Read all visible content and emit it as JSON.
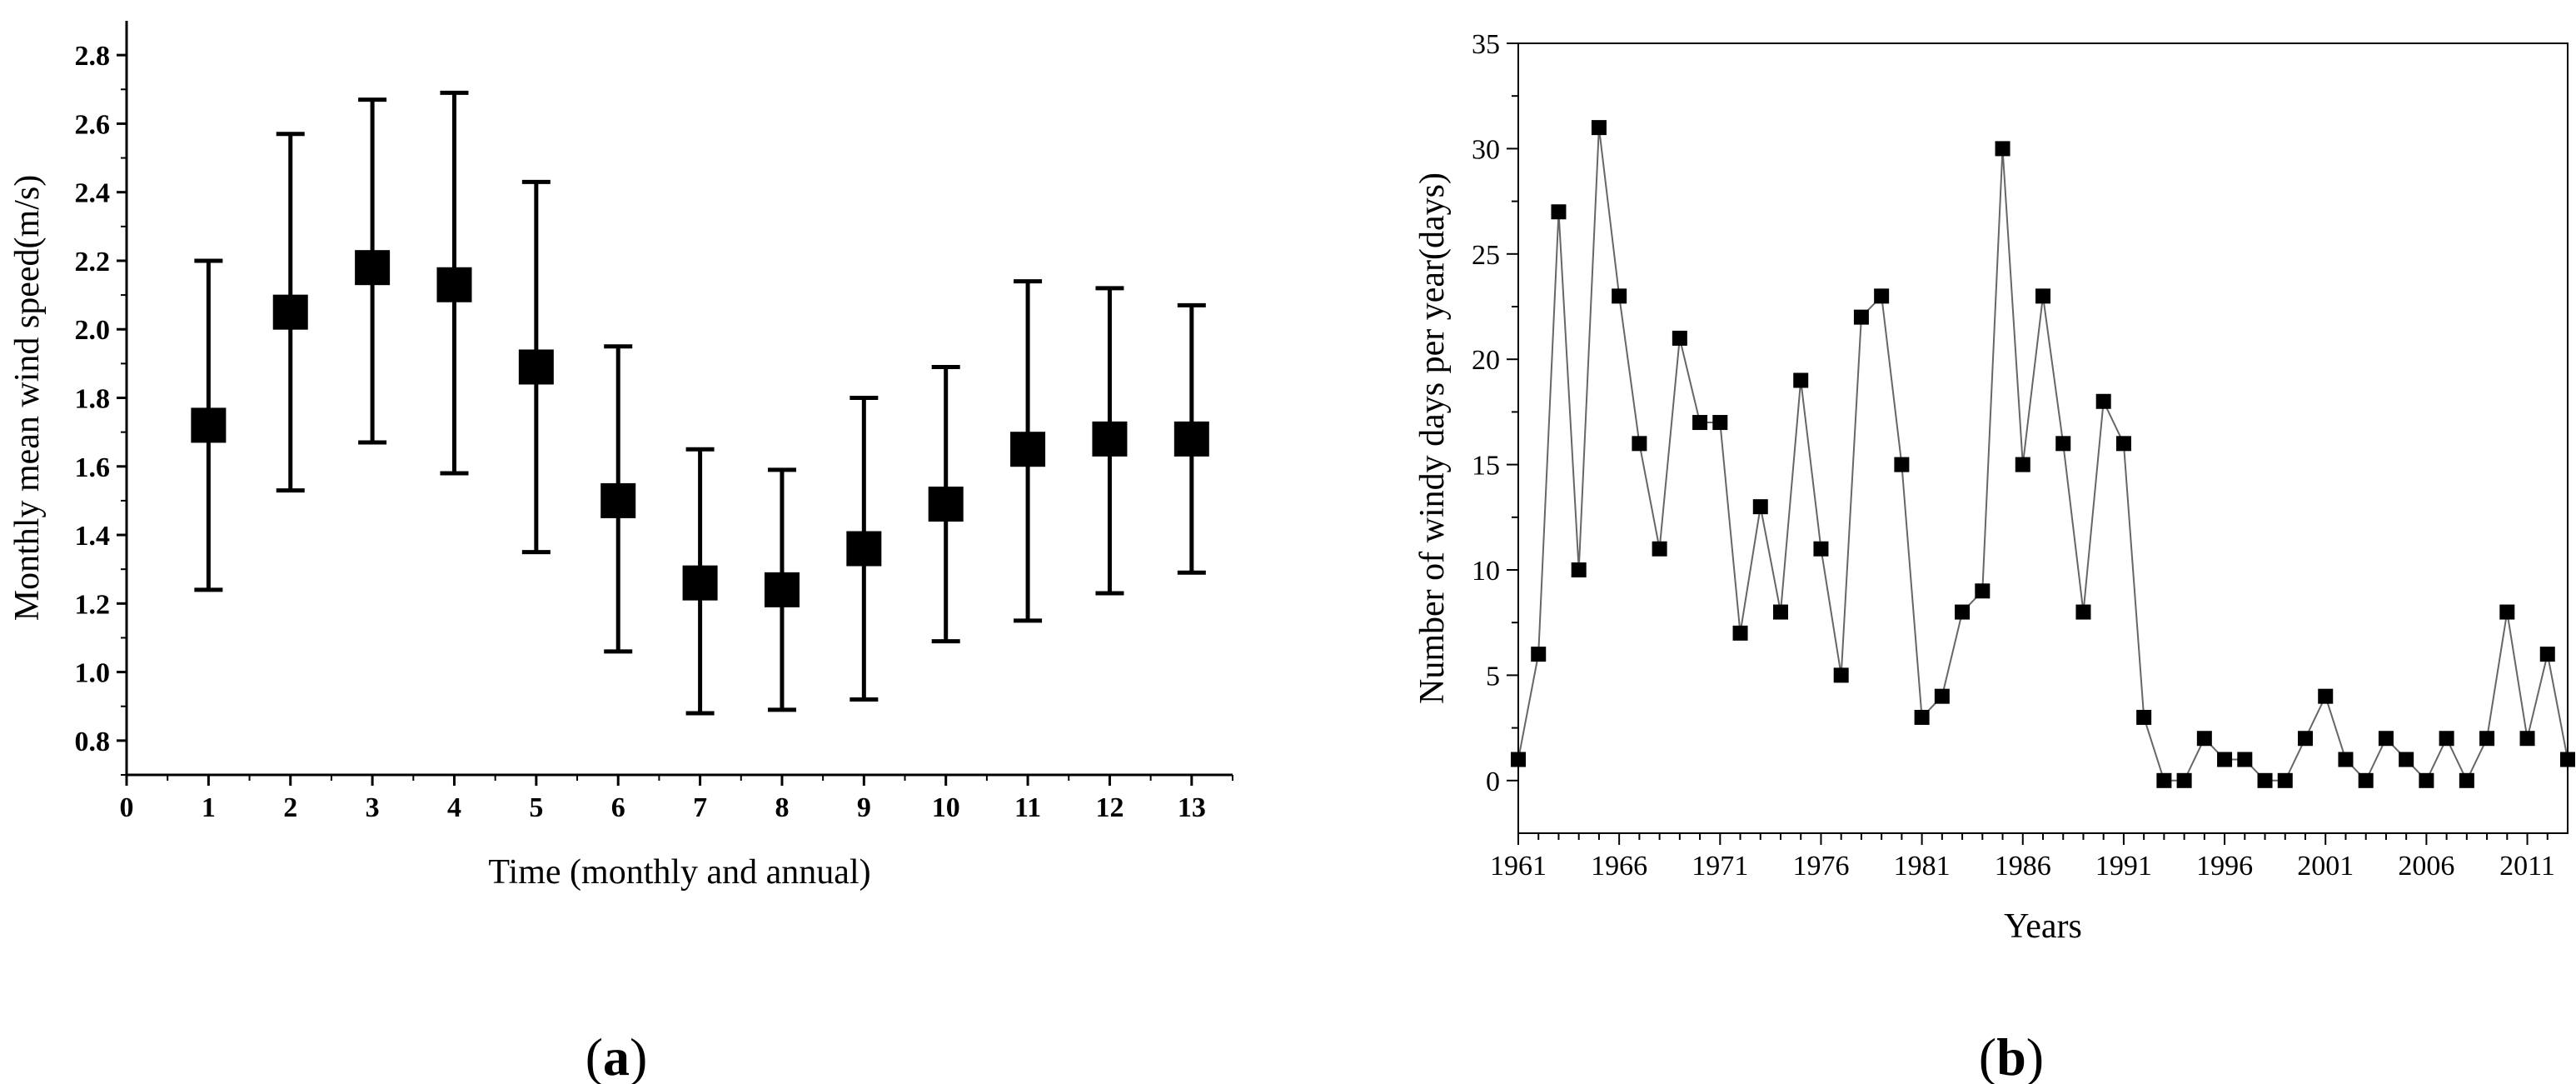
{
  "chart_data": [
    {
      "type": "scatter",
      "panel": "a",
      "xlabel": "Time (monthly and annual)",
      "ylabel": "Monthly mean wind speed(m/s)",
      "xlim": [
        0,
        13.5
      ],
      "ylim": [
        0.7,
        2.9
      ],
      "xticks": [
        "0",
        "1",
        "2",
        "3",
        "4",
        "5",
        "6",
        "7",
        "8",
        "9",
        "10",
        "11",
        "12",
        "13"
      ],
      "yticks": [
        "0.8",
        "1.0",
        "1.2",
        "1.4",
        "1.6",
        "1.8",
        "2.0",
        "2.2",
        "2.4",
        "2.6",
        "2.8"
      ],
      "x": [
        1,
        2,
        3,
        4,
        5,
        6,
        7,
        8,
        9,
        10,
        11,
        12,
        13
      ],
      "values": [
        1.72,
        2.05,
        2.18,
        2.13,
        1.89,
        1.5,
        1.26,
        1.24,
        1.36,
        1.49,
        1.65,
        1.68,
        1.68
      ],
      "error_low": [
        1.24,
        1.53,
        1.67,
        1.58,
        1.35,
        1.06,
        0.88,
        0.89,
        0.92,
        1.09,
        1.15,
        1.23,
        1.29
      ],
      "error_high": [
        2.2,
        2.57,
        2.67,
        2.69,
        2.43,
        1.95,
        1.65,
        1.59,
        1.8,
        1.89,
        2.14,
        2.12,
        2.07
      ],
      "grid": false
    },
    {
      "type": "line",
      "panel": "b",
      "xlabel": "Years",
      "ylabel": "Number of windy days per year(days)",
      "xlim": [
        1961,
        2013
      ],
      "ylim": [
        -2.5,
        35
      ],
      "xticks": [
        "1961",
        "1966",
        "1971",
        "1976",
        "1981",
        "1986",
        "1991",
        "1996",
        "2001",
        "2006",
        "2011"
      ],
      "yticks": [
        "0",
        "5",
        "10",
        "15",
        "20",
        "25",
        "30",
        "35"
      ],
      "x": [
        1961,
        1962,
        1963,
        1964,
        1965,
        1966,
        1967,
        1968,
        1969,
        1970,
        1971,
        1972,
        1973,
        1974,
        1975,
        1976,
        1977,
        1978,
        1979,
        1980,
        1981,
        1982,
        1983,
        1984,
        1985,
        1986,
        1987,
        1988,
        1989,
        1990,
        1991,
        1992,
        1993,
        1994,
        1995,
        1996,
        1997,
        1998,
        1999,
        2000,
        2001,
        2002,
        2003,
        2004,
        2005,
        2006,
        2007,
        2008,
        2009,
        2010,
        2011,
        2012,
        2013
      ],
      "values": [
        1,
        6,
        27,
        10,
        31,
        23,
        16,
        11,
        21,
        17,
        17,
        7,
        13,
        8,
        19,
        11,
        5,
        22,
        23,
        15,
        3,
        4,
        8,
        9,
        30,
        15,
        23,
        16,
        8,
        18,
        16,
        3,
        0,
        0,
        2,
        1,
        1,
        0,
        0,
        2,
        4,
        1,
        0,
        2,
        1,
        0,
        2,
        0,
        2,
        8,
        2,
        6,
        1
      ],
      "grid": false
    }
  ],
  "panel_labels": {
    "a": "(a)",
    "b": "(b)"
  },
  "colors": {
    "ink": "#000000",
    "line": "#666666"
  }
}
